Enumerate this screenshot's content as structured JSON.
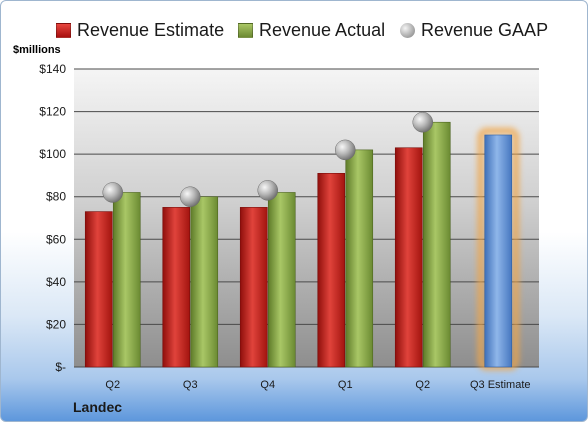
{
  "legend": {
    "estimate": "Revenue Estimate",
    "actual": "Revenue Actual",
    "gaap": "Revenue GAAP"
  },
  "unit_label": "$millions",
  "company": "Landec",
  "colors": {
    "estimate": "#c8211b",
    "actual": "#8aab49",
    "gaap": "#a8a8a8",
    "forecast": "#5e91d6",
    "forecast_glow": "#f0a64a"
  },
  "chart_data": {
    "type": "bar",
    "title": "",
    "xlabel": "",
    "ylabel": "$millions",
    "ylim": [
      0,
      140
    ],
    "y_ticks": [
      0,
      20,
      40,
      60,
      80,
      100,
      120,
      140
    ],
    "y_tick_labels": [
      "$-",
      "$20",
      "$40",
      "$60",
      "$80",
      "$100",
      "$120",
      "$140"
    ],
    "categories": [
      "Q2",
      "Q3",
      "Q4",
      "Q1",
      "Q2",
      "Q3 Estimate"
    ],
    "series": [
      {
        "name": "Revenue Estimate",
        "values": [
          73,
          75,
          75,
          91,
          103,
          109
        ]
      },
      {
        "name": "Revenue Actual",
        "values": [
          82,
          80,
          82,
          102,
          115,
          null
        ]
      },
      {
        "name": "Revenue GAAP",
        "values": [
          82,
          80,
          83,
          102,
          115,
          null
        ]
      }
    ],
    "grid": true,
    "legend_position": "top"
  }
}
